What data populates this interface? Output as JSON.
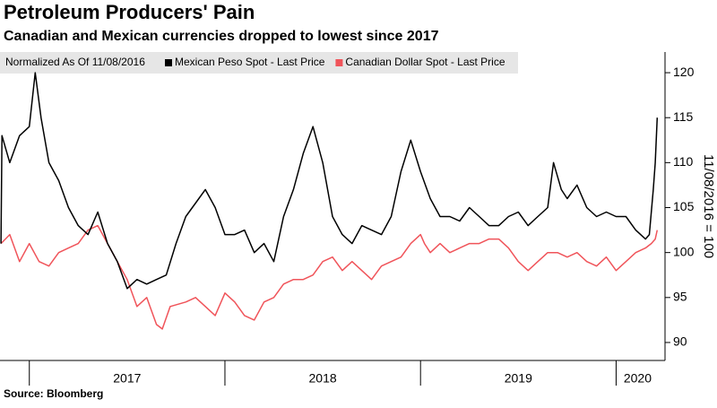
{
  "chart_data": {
    "type": "line",
    "title": "Petroleum Producers' Pain",
    "subtitle": "Canadian and Mexican currencies dropped to lowest since 2017",
    "legend_note": "Normalized As Of 11/08/2016",
    "y_label": "11/08/2016 = 100",
    "source": "Source: Bloomberg",
    "xlim": [
      2016.85,
      2020.25
    ],
    "ylim": [
      88,
      122.3
    ],
    "yticks": [
      90,
      95,
      100,
      105,
      110,
      115,
      120
    ],
    "xticks": [
      {
        "value": 2017.5,
        "label": "2017"
      },
      {
        "value": 2018.5,
        "label": "2018"
      },
      {
        "value": 2019.5,
        "label": "2019"
      },
      {
        "value": 2020.11,
        "label": "2020"
      }
    ],
    "xboundaries": [
      2017,
      2018,
      2019,
      2020
    ],
    "grid": false,
    "series": [
      {
        "name": "Mexican Peso Spot - Last Price",
        "color": "#000000",
        "x": [
          2016.855,
          2016.86,
          2016.9,
          2016.95,
          2017.0,
          2017.03,
          2017.06,
          2017.1,
          2017.15,
          2017.2,
          2017.25,
          2017.3,
          2017.35,
          2017.4,
          2017.45,
          2017.5,
          2017.55,
          2017.6,
          2017.65,
          2017.7,
          2017.75,
          2017.8,
          2017.85,
          2017.9,
          2017.95,
          2018.0,
          2018.05,
          2018.1,
          2018.15,
          2018.2,
          2018.25,
          2018.3,
          2018.35,
          2018.4,
          2018.45,
          2018.5,
          2018.55,
          2018.6,
          2018.65,
          2018.7,
          2018.75,
          2018.8,
          2018.85,
          2018.9,
          2018.95,
          2019.0,
          2019.05,
          2019.1,
          2019.15,
          2019.2,
          2019.25,
          2019.3,
          2019.35,
          2019.4,
          2019.45,
          2019.5,
          2019.55,
          2019.6,
          2019.65,
          2019.68,
          2019.72,
          2019.75,
          2019.8,
          2019.85,
          2019.9,
          2019.95,
          2020.0,
          2020.05,
          2020.1,
          2020.15,
          2020.17,
          2020.19,
          2020.2,
          2020.21
        ],
        "values": [
          101,
          113,
          110,
          113,
          114,
          120,
          115,
          110,
          108,
          105,
          103,
          102,
          104.5,
          101,
          99,
          96,
          97,
          96.5,
          97,
          97.5,
          101,
          104,
          105.5,
          107,
          105,
          102,
          102,
          102.5,
          100,
          101,
          99,
          104,
          107,
          111,
          114,
          110,
          104,
          102,
          101,
          103,
          102.5,
          102,
          104,
          109,
          112.5,
          109,
          106,
          104,
          104,
          103.5,
          105,
          104,
          103,
          103,
          104,
          104.5,
          103,
          104,
          105,
          110,
          107,
          106,
          107.5,
          105,
          104,
          104.5,
          104,
          104,
          102.5,
          101.5,
          102,
          107,
          110,
          115
        ]
      },
      {
        "name": "Canadian Dollar Spot - Last Price",
        "color": "#f0545a",
        "x": [
          2016.855,
          2016.9,
          2016.95,
          2017.0,
          2017.05,
          2017.1,
          2017.15,
          2017.2,
          2017.25,
          2017.3,
          2017.35,
          2017.4,
          2017.45,
          2017.5,
          2017.55,
          2017.6,
          2017.65,
          2017.68,
          2017.72,
          2017.8,
          2017.85,
          2017.9,
          2017.95,
          2018.0,
          2018.05,
          2018.1,
          2018.15,
          2018.2,
          2018.25,
          2018.3,
          2018.35,
          2018.4,
          2018.45,
          2018.5,
          2018.55,
          2018.6,
          2018.65,
          2018.7,
          2018.75,
          2018.8,
          2018.85,
          2018.9,
          2018.95,
          2019.0,
          2019.02,
          2019.05,
          2019.1,
          2019.15,
          2019.2,
          2019.25,
          2019.3,
          2019.35,
          2019.4,
          2019.45,
          2019.5,
          2019.55,
          2019.6,
          2019.65,
          2019.7,
          2019.75,
          2019.8,
          2019.85,
          2019.9,
          2019.95,
          2020.0,
          2020.05,
          2020.1,
          2020.15,
          2020.18,
          2020.2,
          2020.21
        ],
        "values": [
          101,
          102,
          99,
          101,
          99,
          98.5,
          100,
          100.5,
          101,
          102.5,
          103,
          101,
          99,
          97,
          94,
          95,
          92,
          91.5,
          94,
          94.5,
          95,
          94,
          93,
          95.5,
          94.5,
          93,
          92.5,
          94.5,
          95,
          96.5,
          97,
          97,
          97.5,
          99,
          99.5,
          98,
          99,
          98,
          97,
          98.5,
          99,
          99.5,
          101,
          102,
          101,
          100,
          101,
          100,
          100.5,
          101,
          101,
          101.5,
          101.5,
          100.5,
          99,
          98,
          99,
          100,
          100,
          99.5,
          100,
          99,
          98.5,
          99.5,
          98,
          99,
          100,
          100.5,
          101,
          101.5,
          102.5
        ]
      }
    ]
  }
}
